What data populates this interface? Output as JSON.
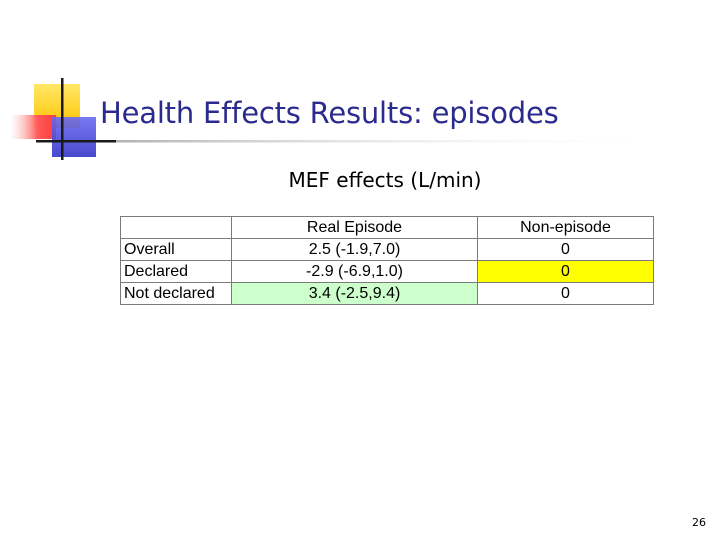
{
  "slide": {
    "title": "Health Effects Results: episodes",
    "subtitle": "MEF effects (L/min)",
    "page_number": "26"
  },
  "table": {
    "header": [
      "",
      "Real Episode",
      "Non-episode"
    ],
    "rows": [
      {
        "label": "Overall",
        "real_episode": "2.5 (-1.9,7.0)",
        "non_episode": "0"
      },
      {
        "label": "Declared",
        "real_episode": "-2.9 (-6.9,1.0)",
        "non_episode": "0"
      },
      {
        "label": "Not declared",
        "real_episode": "3.4 (-2.5,9.4)",
        "non_episode": "0"
      }
    ]
  },
  "colors": {
    "title": "#2b2b8f",
    "highlight_yellow": "#ffff00",
    "highlight_green": "#ccffcc",
    "deco_yellow": "#ffd21f",
    "deco_red": "#ff5a5a",
    "deco_blue": "#4a4ae0"
  }
}
